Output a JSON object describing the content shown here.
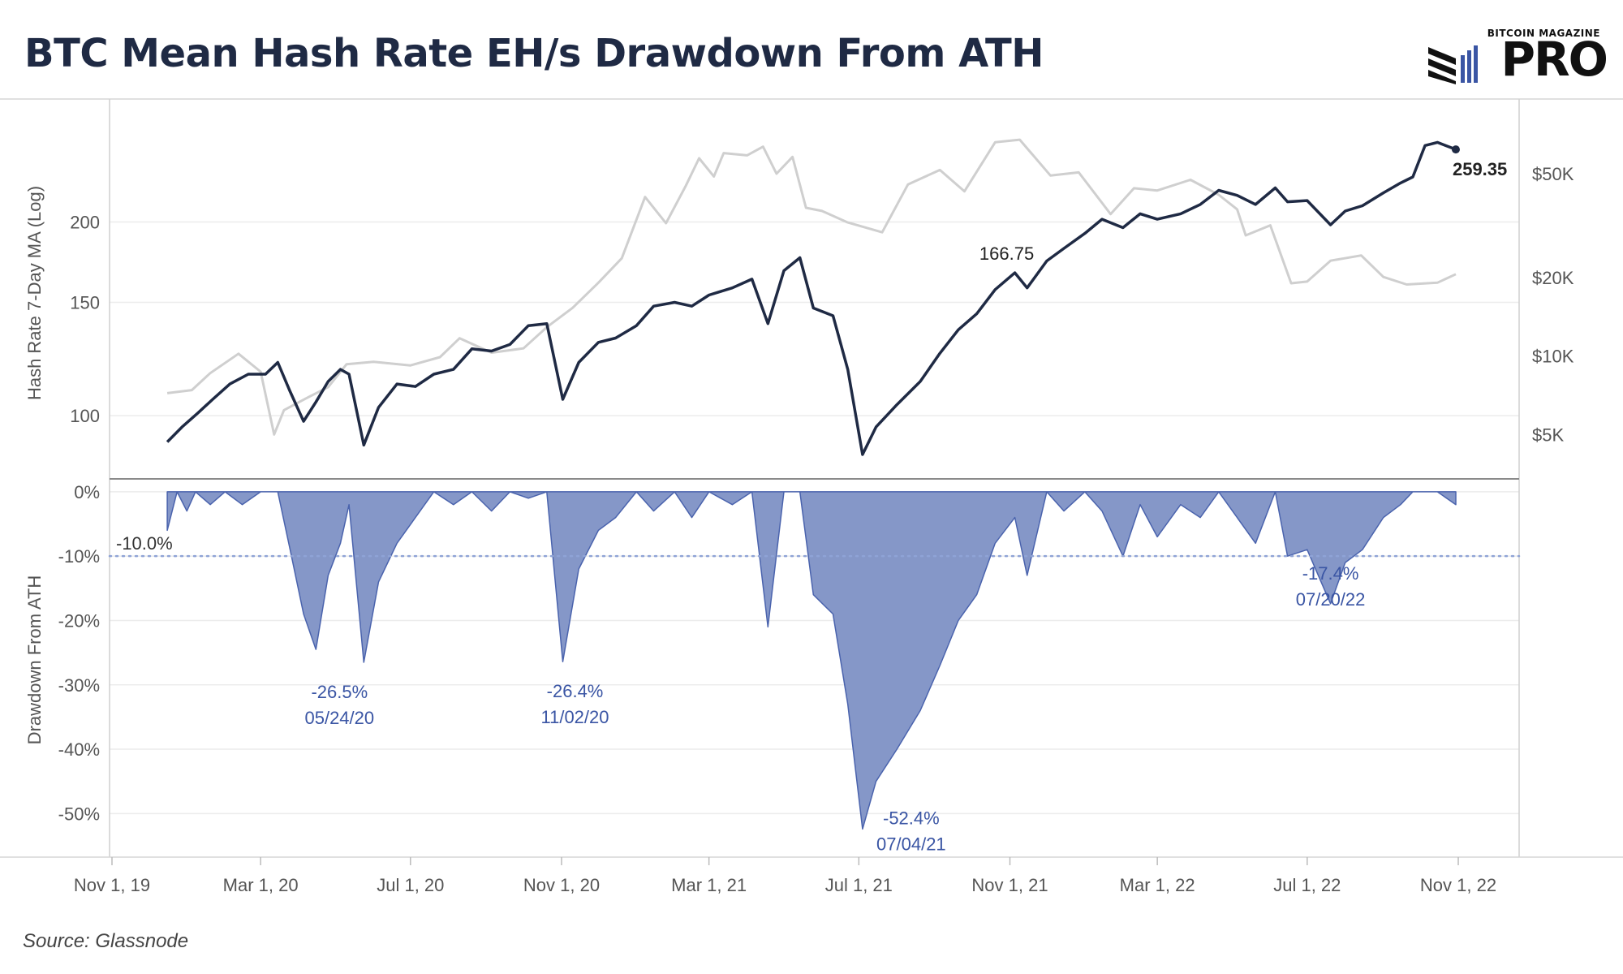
{
  "title": "BTC Mean Hash Rate EH/s Drawdown From ATH",
  "logo": {
    "small_text": "BITCOIN MAGAZINE",
    "big_text": "PRO"
  },
  "source": "Source: Glassnode",
  "colors": {
    "hash": "#1f2a44",
    "price": "#cfcfcf",
    "drawdown_fill": "#8597c8",
    "drawdown_stroke": "#4a63ad",
    "annotation": "#3a55a4",
    "threshold": "#8fa3d6"
  },
  "chart_data": [
    {
      "type": "line",
      "ylabel": "Hash Rate 7-Day MA (Log)",
      "y_scale": "log",
      "ylim": [
        87,
        300
      ],
      "yticks": [
        100,
        150,
        200
      ],
      "x_ticks": [
        "Nov 1, 19",
        "Mar 1, 20",
        "Jul 1, 20",
        "Nov 1, 20",
        "Mar 1, 21",
        "Jul 1, 21",
        "Nov 1, 21",
        "Mar 1, 22",
        "Jul 1, 22",
        "Nov 1, 22"
      ],
      "series": [
        {
          "key": "hash_rate",
          "points": [
            [
              "2019-12-16",
              91
            ],
            [
              "2019-12-28",
              96
            ],
            [
              "2020-01-10",
              101
            ],
            [
              "2020-01-22",
              106
            ],
            [
              "2020-02-05",
              112
            ],
            [
              "2020-02-20",
              116
            ],
            [
              "2020-03-05",
              116
            ],
            [
              "2020-03-15",
              121
            ],
            [
              "2020-03-25",
              109
            ],
            [
              "2020-04-05",
              98
            ],
            [
              "2020-04-15",
              105
            ],
            [
              "2020-04-25",
              113
            ],
            [
              "2020-05-05",
              118
            ],
            [
              "2020-05-12",
              116
            ],
            [
              "2020-05-24",
              90
            ],
            [
              "2020-06-05",
              103
            ],
            [
              "2020-06-20",
              112
            ],
            [
              "2020-07-05",
              111
            ],
            [
              "2020-07-20",
              116
            ],
            [
              "2020-08-05",
              118
            ],
            [
              "2020-08-20",
              127
            ],
            [
              "2020-09-05",
              126
            ],
            [
              "2020-09-20",
              129
            ],
            [
              "2020-10-05",
              138
            ],
            [
              "2020-10-20",
              139
            ],
            [
              "2020-11-02",
              106
            ],
            [
              "2020-11-15",
              121
            ],
            [
              "2020-12-01",
              130
            ],
            [
              "2020-12-15",
              132
            ],
            [
              "2021-01-01",
              138
            ],
            [
              "2021-01-15",
              148
            ],
            [
              "2021-02-01",
              150
            ],
            [
              "2021-02-15",
              148
            ],
            [
              "2021-03-01",
              154
            ],
            [
              "2021-03-20",
              158
            ],
            [
              "2021-04-05",
              163
            ],
            [
              "2021-04-18",
              139
            ],
            [
              "2021-05-01",
              168
            ],
            [
              "2021-05-14",
              176
            ],
            [
              "2021-05-25",
              147
            ],
            [
              "2021-06-10",
              143
            ],
            [
              "2021-06-22",
              118
            ],
            [
              "2021-07-04",
              87
            ],
            [
              "2021-07-15",
              96
            ],
            [
              "2021-08-01",
              104
            ],
            [
              "2021-08-20",
              113
            ],
            [
              "2021-09-05",
              125
            ],
            [
              "2021-09-20",
              136
            ],
            [
              "2021-10-05",
              144
            ],
            [
              "2021-10-20",
              157
            ],
            [
              "2021-11-05",
              166.75
            ],
            [
              "2021-11-15",
              158
            ],
            [
              "2021-12-01",
              174
            ],
            [
              "2021-12-15",
              182
            ],
            [
              "2022-01-01",
              192
            ],
            [
              "2022-01-15",
              202
            ],
            [
              "2022-02-01",
              196
            ],
            [
              "2022-02-15",
              206
            ],
            [
              "2022-03-01",
              202
            ],
            [
              "2022-03-20",
              206
            ],
            [
              "2022-04-05",
              213
            ],
            [
              "2022-04-20",
              224
            ],
            [
              "2022-05-05",
              220
            ],
            [
              "2022-05-20",
              213
            ],
            [
              "2022-06-05",
              226
            ],
            [
              "2022-06-15",
              215
            ],
            [
              "2022-07-01",
              216
            ],
            [
              "2022-07-20",
              198
            ],
            [
              "2022-08-01",
              208
            ],
            [
              "2022-08-15",
              212
            ],
            [
              "2022-09-01",
              222
            ],
            [
              "2022-09-15",
              230
            ],
            [
              "2022-09-25",
              235
            ],
            [
              "2022-10-05",
              263
            ],
            [
              "2022-10-15",
              266
            ],
            [
              "2022-10-30",
              259.35
            ]
          ]
        },
        {
          "key": "btc_price",
          "y_scale": "log",
          "ylim": [
            3900,
            90000
          ],
          "yticks": [
            5000,
            10000,
            20000,
            50000
          ],
          "ytick_labels": [
            "$5K",
            "$10K",
            "$20K",
            "$50K"
          ],
          "points": [
            [
              "2019-12-16",
              7200
            ],
            [
              "2020-01-05",
              7400
            ],
            [
              "2020-01-20",
              8600
            ],
            [
              "2020-02-12",
              10200
            ],
            [
              "2020-03-01",
              8700
            ],
            [
              "2020-03-12",
              5000
            ],
            [
              "2020-03-20",
              6200
            ],
            [
              "2020-04-05",
              6800
            ],
            [
              "2020-04-25",
              7600
            ],
            [
              "2020-05-10",
              9300
            ],
            [
              "2020-06-01",
              9500
            ],
            [
              "2020-07-01",
              9200
            ],
            [
              "2020-07-25",
              9900
            ],
            [
              "2020-08-10",
              11700
            ],
            [
              "2020-09-05",
              10300
            ],
            [
              "2020-10-01",
              10700
            ],
            [
              "2020-10-20",
              12900
            ],
            [
              "2020-11-10",
              15300
            ],
            [
              "2020-12-01",
              19100
            ],
            [
              "2020-12-20",
              23700
            ],
            [
              "2021-01-08",
              40700
            ],
            [
              "2021-01-25",
              32300
            ],
            [
              "2021-02-10",
              44800
            ],
            [
              "2021-02-21",
              57300
            ],
            [
              "2021-03-05",
              48800
            ],
            [
              "2021-03-13",
              60000
            ],
            [
              "2021-04-01",
              58800
            ],
            [
              "2021-04-14",
              63500
            ],
            [
              "2021-04-25",
              50000
            ],
            [
              "2021-05-08",
              58000
            ],
            [
              "2021-05-19",
              37000
            ],
            [
              "2021-06-01",
              36000
            ],
            [
              "2021-06-22",
              32500
            ],
            [
              "2021-07-20",
              29800
            ],
            [
              "2021-08-10",
              45500
            ],
            [
              "2021-09-05",
              51700
            ],
            [
              "2021-09-25",
              42800
            ],
            [
              "2021-10-20",
              66000
            ],
            [
              "2021-11-09",
              67500
            ],
            [
              "2021-12-04",
              49200
            ],
            [
              "2021-12-27",
              50600
            ],
            [
              "2022-01-22",
              35000
            ],
            [
              "2022-02-10",
              44000
            ],
            [
              "2022-03-01",
              43100
            ],
            [
              "2022-03-28",
              47400
            ],
            [
              "2022-04-20",
              41500
            ],
            [
              "2022-05-05",
              36500
            ],
            [
              "2022-05-12",
              29000
            ],
            [
              "2022-06-01",
              31700
            ],
            [
              "2022-06-18",
              19000
            ],
            [
              "2022-07-01",
              19300
            ],
            [
              "2022-07-20",
              23200
            ],
            [
              "2022-08-14",
              24300
            ],
            [
              "2022-09-01",
              20100
            ],
            [
              "2022-09-20",
              18800
            ],
            [
              "2022-10-15",
              19100
            ],
            [
              "2022-10-30",
              20600
            ]
          ]
        }
      ],
      "annotations": [
        {
          "date": "2021-11-05",
          "value": 166.75,
          "text": "166.75"
        },
        {
          "date": "2022-10-30",
          "value": 259.35,
          "text": "259.35"
        }
      ]
    },
    {
      "type": "area",
      "ylabel": "Drawdown From ATH",
      "ylim": [
        -55,
        2
      ],
      "yticks": [
        0,
        -10,
        -20,
        -30,
        -40,
        -50
      ],
      "ytick_labels": [
        "0%",
        "-10%",
        "-20%",
        "-30%",
        "-40%",
        "-50%"
      ],
      "threshold": {
        "value": -10,
        "label": "-10.0%"
      },
      "series": [
        {
          "key": "drawdown",
          "points": [
            [
              "2019-12-16",
              -6
            ],
            [
              "2019-12-24",
              0
            ],
            [
              "2020-01-01",
              -3
            ],
            [
              "2020-01-08",
              0
            ],
            [
              "2020-01-20",
              -2
            ],
            [
              "2020-02-01",
              0
            ],
            [
              "2020-02-15",
              -2
            ],
            [
              "2020-03-01",
              0
            ],
            [
              "2020-03-15",
              0
            ],
            [
              "2020-03-25",
              -9
            ],
            [
              "2020-04-05",
              -19
            ],
            [
              "2020-04-15",
              -24.5
            ],
            [
              "2020-04-25",
              -13
            ],
            [
              "2020-05-05",
              -8
            ],
            [
              "2020-05-12",
              -2
            ],
            [
              "2020-05-24",
              -26.5
            ],
            [
              "2020-06-05",
              -14
            ],
            [
              "2020-06-20",
              -8
            ],
            [
              "2020-07-05",
              -4
            ],
            [
              "2020-07-20",
              0
            ],
            [
              "2020-08-05",
              -2
            ],
            [
              "2020-08-20",
              0
            ],
            [
              "2020-09-05",
              -3
            ],
            [
              "2020-09-20",
              0
            ],
            [
              "2020-10-05",
              -1
            ],
            [
              "2020-10-20",
              0
            ],
            [
              "2020-11-02",
              -26.4
            ],
            [
              "2020-11-15",
              -12
            ],
            [
              "2020-12-01",
              -6
            ],
            [
              "2020-12-15",
              -4
            ],
            [
              "2021-01-01",
              0
            ],
            [
              "2021-01-15",
              -3
            ],
            [
              "2021-02-01",
              0
            ],
            [
              "2021-02-15",
              -4
            ],
            [
              "2021-03-01",
              0
            ],
            [
              "2021-03-20",
              -2
            ],
            [
              "2021-04-05",
              0
            ],
            [
              "2021-04-18",
              -21
            ],
            [
              "2021-05-01",
              0
            ],
            [
              "2021-05-14",
              0
            ],
            [
              "2021-05-25",
              -16
            ],
            [
              "2021-06-10",
              -19
            ],
            [
              "2021-06-22",
              -33
            ],
            [
              "2021-07-04",
              -52.4
            ],
            [
              "2021-07-15",
              -45
            ],
            [
              "2021-08-01",
              -40
            ],
            [
              "2021-08-20",
              -34
            ],
            [
              "2021-09-05",
              -27
            ],
            [
              "2021-09-20",
              -20
            ],
            [
              "2021-10-05",
              -16
            ],
            [
              "2021-10-20",
              -8
            ],
            [
              "2021-11-05",
              -4
            ],
            [
              "2021-11-15",
              -13
            ],
            [
              "2021-12-01",
              0
            ],
            [
              "2021-12-15",
              -3
            ],
            [
              "2022-01-01",
              0
            ],
            [
              "2022-01-15",
              -3
            ],
            [
              "2022-02-01",
              -10
            ],
            [
              "2022-02-15",
              -2
            ],
            [
              "2022-03-01",
              -7
            ],
            [
              "2022-03-20",
              -2
            ],
            [
              "2022-04-05",
              -4
            ],
            [
              "2022-04-20",
              0
            ],
            [
              "2022-05-05",
              -4
            ],
            [
              "2022-05-20",
              -8
            ],
            [
              "2022-06-05",
              0
            ],
            [
              "2022-06-15",
              -10
            ],
            [
              "2022-07-01",
              -9
            ],
            [
              "2022-07-20",
              -17.4
            ],
            [
              "2022-08-01",
              -11
            ],
            [
              "2022-08-15",
              -9
            ],
            [
              "2022-09-01",
              -4
            ],
            [
              "2022-09-15",
              -2
            ],
            [
              "2022-09-25",
              0
            ],
            [
              "2022-10-05",
              0
            ],
            [
              "2022-10-15",
              0
            ],
            [
              "2022-10-30",
              -2
            ]
          ]
        }
      ],
      "annotations": [
        {
          "date": "2020-05-24",
          "value": -26.5,
          "text": "-26.5%",
          "date_label": "05/24/20"
        },
        {
          "date": "2020-11-02",
          "value": -26.4,
          "text": "-26.4%",
          "date_label": "11/02/20"
        },
        {
          "date": "2021-07-04",
          "value": -52.4,
          "text": "-52.4%",
          "date_label": "07/04/21"
        },
        {
          "date": "2022-07-20",
          "value": -17.4,
          "text": "-17.4%",
          "date_label": "07/20/22"
        }
      ]
    }
  ]
}
